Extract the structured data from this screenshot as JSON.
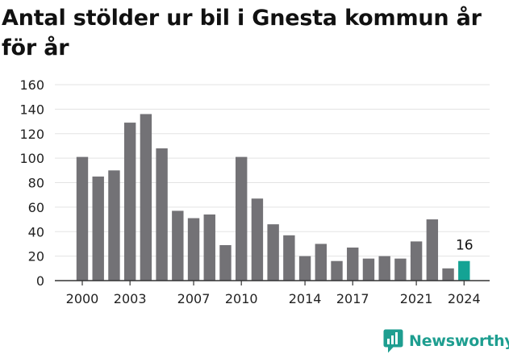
{
  "title": "Antal stölder ur bil i Gnesta kommun år för år",
  "brand": {
    "name": "Newsworthy",
    "icon": "newsworthy-logo-icon",
    "color": "#1e9e90"
  },
  "chart_data": {
    "type": "bar",
    "title": "Antal stölder ur bil i Gnesta kommun år för år",
    "xlabel": "",
    "ylabel": "",
    "ylim": [
      0,
      160
    ],
    "yticks": [
      0,
      20,
      40,
      60,
      80,
      100,
      120,
      140,
      160
    ],
    "x_tick_labels": [
      "2000",
      "2003",
      "2007",
      "2010",
      "2014",
      "2017",
      "2021",
      "2024"
    ],
    "categories": [
      "2000",
      "2001",
      "2002",
      "2003",
      "2004",
      "2005",
      "2006",
      "2007",
      "2008",
      "2009",
      "2010",
      "2011",
      "2012",
      "2013",
      "2014",
      "2015",
      "2016",
      "2017",
      "2018",
      "2019",
      "2020",
      "2021",
      "2022",
      "2023",
      "2024"
    ],
    "values": [
      101,
      85,
      90,
      129,
      136,
      108,
      57,
      51,
      54,
      29,
      101,
      67,
      46,
      37,
      20,
      30,
      16,
      27,
      18,
      20,
      18,
      32,
      50,
      10,
      16
    ],
    "highlight": {
      "category": "2024",
      "label": "16"
    },
    "grid": true,
    "colors": {
      "bar": "#737276",
      "highlight": "#14a394",
      "grid": "#e3e3e3",
      "axis": "#333333"
    }
  }
}
